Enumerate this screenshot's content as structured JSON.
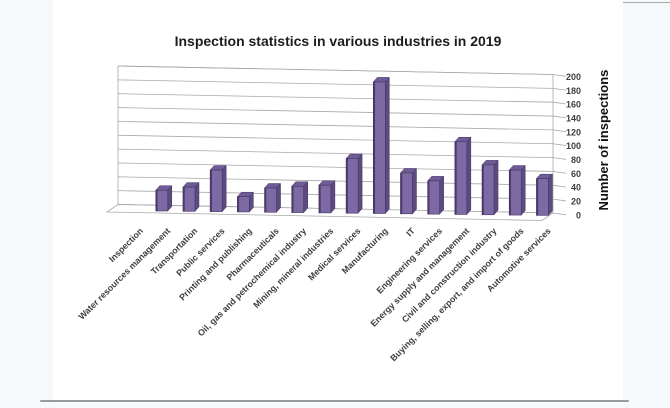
{
  "page": {
    "background_color": "#f5f9fc",
    "panel_color": "#ffffff",
    "frame_line_color": "#9a9a9a"
  },
  "chart_data": {
    "type": "bar",
    "style": "3d-column",
    "title": "Inspection statistics in various industries in 2019",
    "xlabel": "",
    "ylabel": "Number of inspections",
    "categories": [
      "Inspection",
      "Water resources management",
      "Transportation",
      "Public services",
      "Printing and publishing",
      "Pharmaceuticals",
      "Oil, gas and petrochemical industry",
      "Mining, mineral industries",
      "Medical services",
      "Manufacturing",
      "IT",
      "Engineering services",
      "Energy supply and management",
      "Civil and construction industry",
      "Buying, selling, export, and import of goods",
      "Automotive services"
    ],
    "values": [
      0,
      30,
      35,
      60,
      22,
      35,
      38,
      40,
      79,
      190,
      59,
      48,
      105,
      72,
      65,
      53
    ],
    "ylim": [
      0,
      200
    ],
    "yticks": [
      0,
      20,
      40,
      60,
      80,
      100,
      120,
      140,
      160,
      180,
      200
    ],
    "grid": true,
    "legend": false,
    "axis_side": "right",
    "colors": {
      "bar_front": "#7D6AA5",
      "bar_top": "#6F5B96",
      "bar_side": "#5D4A80",
      "bar_edge": "#443360",
      "gridline": "#a8a8a8",
      "wall_fill": "#ffffff",
      "tick_text": "#3d3d3d",
      "title_text": "#1c1c1c"
    }
  }
}
